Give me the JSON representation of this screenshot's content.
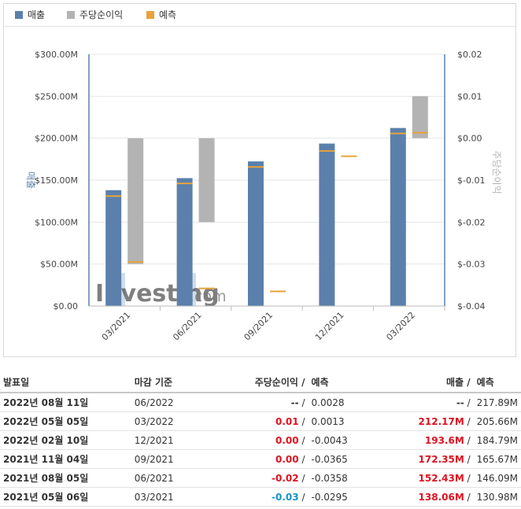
{
  "legend": [
    {
      "label": "매출",
      "color": "#5b80ac"
    },
    {
      "label": "주당순이익",
      "color": "#b3b3b3"
    },
    {
      "label": "예측",
      "color": "#e8a33a"
    }
  ],
  "watermark": {
    "brand": "Investing",
    "suffix": ".com"
  },
  "chart_data": {
    "type": "bar",
    "categories": [
      "03/2021",
      "06/2021",
      "09/2021",
      "12/2021",
      "03/2022"
    ],
    "left_axis": {
      "label": "매출",
      "ticks": [
        "$300.00M",
        "$250.00M",
        "$200.00M",
        "$150.00M",
        "$100.00M",
        "$50.00M",
        "$0.00"
      ],
      "range": [
        0,
        300
      ]
    },
    "right_axis": {
      "label": "주당순이익",
      "ticks": [
        "$0.02",
        "$0.01",
        "$0.00",
        "$-0.01",
        "$-0.02",
        "$-0.03",
        "$-0.04"
      ],
      "range": [
        -0.04,
        0.02
      ]
    },
    "series": [
      {
        "name": "매출",
        "axis": "left",
        "values": [
          138.06,
          152.43,
          172.35,
          193.6,
          212.17
        ]
      },
      {
        "name": "매출 예측",
        "axis": "left",
        "values": [
          130.98,
          146.09,
          165.67,
          184.79,
          205.66
        ]
      },
      {
        "name": "주당순이익",
        "axis": "right",
        "values": [
          -0.03,
          -0.02,
          0.0,
          0.0,
          0.01
        ]
      },
      {
        "name": "주당순이익 예측",
        "axis": "right",
        "values": [
          -0.0295,
          -0.0358,
          -0.0365,
          -0.0043,
          0.0013
        ]
      }
    ],
    "colors": {
      "revenue": "#5b80ac",
      "eps": "#b3b3b3",
      "forecast": "#e8a33a"
    },
    "grid": true
  },
  "table": {
    "headers": {
      "date": "발표일",
      "period": "마감 기준",
      "eps": "주당순이익",
      "eps_forecast": "예측",
      "revenue": "매출",
      "revenue_forecast": "예측",
      "slash": "/"
    },
    "rows": [
      {
        "date": "2022년 08월 11일",
        "period": "06/2022",
        "eps": "--",
        "eps_forecast": "0.0028",
        "revenue": "--",
        "revenue_forecast": "217.89M",
        "eps_class": "",
        "rev_class": ""
      },
      {
        "date": "2022년 05월 05일",
        "period": "03/2022",
        "eps": "0.01",
        "eps_forecast": "0.0013",
        "revenue": "212.17M",
        "revenue_forecast": "205.66M",
        "eps_class": "up",
        "rev_class": "up"
      },
      {
        "date": "2022년 02월 10일",
        "period": "12/2021",
        "eps": "0.00",
        "eps_forecast": "-0.0043",
        "revenue": "193.6M",
        "revenue_forecast": "184.79M",
        "eps_class": "up",
        "rev_class": "up"
      },
      {
        "date": "2021년 11월 04일",
        "period": "09/2021",
        "eps": "0.00",
        "eps_forecast": "-0.0365",
        "revenue": "172.35M",
        "revenue_forecast": "165.67M",
        "eps_class": "up",
        "rev_class": "up"
      },
      {
        "date": "2021년 08월 05일",
        "period": "06/2021",
        "eps": "-0.02",
        "eps_forecast": "-0.0358",
        "revenue": "152.43M",
        "revenue_forecast": "146.09M",
        "eps_class": "up",
        "rev_class": "up"
      },
      {
        "date": "2021년 05월 06일",
        "period": "03/2021",
        "eps": "-0.03",
        "eps_forecast": "-0.0295",
        "revenue": "138.06M",
        "revenue_forecast": "130.98M",
        "eps_class": "down",
        "rev_class": "up"
      }
    ]
  }
}
